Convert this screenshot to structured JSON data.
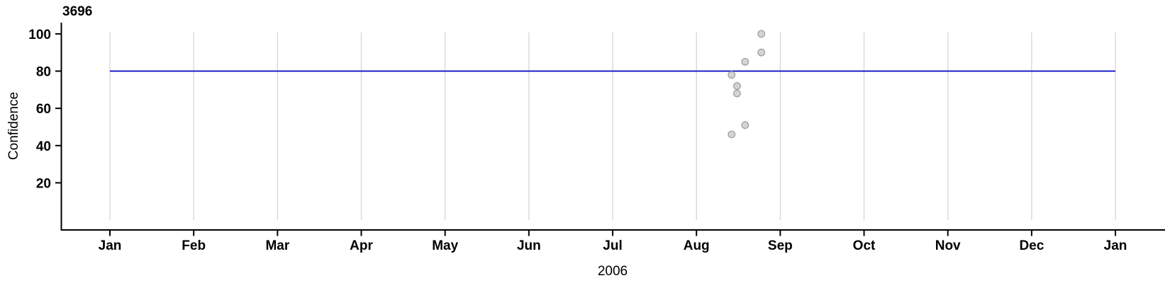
{
  "chart_data": {
    "type": "scatter",
    "title": "3696",
    "xlabel": "2006",
    "ylabel": "Confidence",
    "x_tick_labels": [
      "Jan",
      "Feb",
      "Mar",
      "Apr",
      "May",
      "Jun",
      "Jul",
      "Aug",
      "Sep",
      "Oct",
      "Nov",
      "Dec",
      "Jan"
    ],
    "x_range": [
      "2006-01-01",
      "2007-01-01"
    ],
    "y_ticks": [
      20,
      40,
      60,
      80,
      100
    ],
    "ylim": [
      0,
      105
    ],
    "grid": "vertical-month-gridlines",
    "legend": "none",
    "reference_line": {
      "value": 80,
      "color": "#0000CC"
    },
    "points": [
      {
        "date": "2006-08-14",
        "confidence": 78
      },
      {
        "date": "2006-08-14",
        "confidence": 46
      },
      {
        "date": "2006-08-16",
        "confidence": 72
      },
      {
        "date": "2006-08-16",
        "confidence": 68
      },
      {
        "date": "2006-08-19",
        "confidence": 85
      },
      {
        "date": "2006-08-19",
        "confidence": 51
      },
      {
        "date": "2006-08-25",
        "confidence": 100
      },
      {
        "date": "2006-08-25",
        "confidence": 90
      }
    ],
    "colors": {
      "point_fill": "#D4D4D4",
      "point_stroke": "#9D9D9D",
      "grid": "#D6D6D6",
      "axis": "#000000",
      "text": "#000000",
      "reference": "#0000CC"
    }
  }
}
